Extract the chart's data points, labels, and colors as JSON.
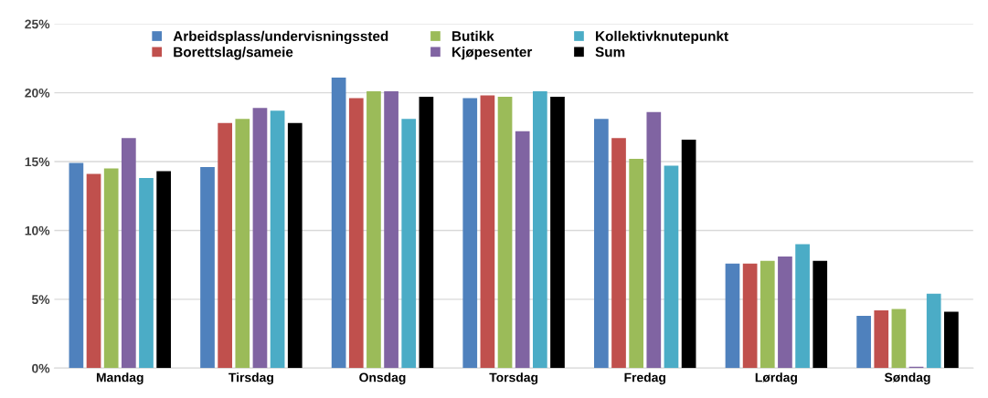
{
  "chart_data": {
    "type": "bar",
    "categories": [
      "Mandag",
      "Tirsdag",
      "Onsdag",
      "Torsdag",
      "Fredag",
      "Lørdag",
      "Søndag"
    ],
    "series": [
      {
        "name": "Arbeidsplass/undervisningssted",
        "color": "#4f81bd",
        "values": [
          14.9,
          14.6,
          21.1,
          19.6,
          18.1,
          7.6,
          3.8
        ]
      },
      {
        "name": "Borettslag/sameie",
        "color": "#c0504d",
        "values": [
          14.1,
          17.8,
          19.6,
          19.8,
          16.7,
          7.6,
          4.2
        ]
      },
      {
        "name": "Butikk",
        "color": "#9bbb59",
        "values": [
          14.5,
          18.1,
          20.1,
          19.7,
          15.2,
          7.8,
          4.3
        ]
      },
      {
        "name": "Kjøpesenter",
        "color": "#8064a2",
        "values": [
          16.7,
          18.9,
          20.1,
          17.2,
          18.6,
          8.1,
          0.1
        ]
      },
      {
        "name": "Kollektivknutepunkt",
        "color": "#4bacc6",
        "values": [
          13.8,
          18.7,
          18.1,
          20.1,
          14.7,
          9.0,
          5.4
        ]
      },
      {
        "name": "Sum",
        "color": "#000000",
        "values": [
          14.3,
          17.8,
          19.7,
          19.7,
          16.6,
          7.8,
          4.1
        ]
      }
    ],
    "ylim": [
      0,
      25
    ],
    "yticks": [
      {
        "value": 0,
        "label": "0%"
      },
      {
        "value": 5,
        "label": "5%"
      },
      {
        "value": 10,
        "label": "10%"
      },
      {
        "value": 15,
        "label": "15%"
      },
      {
        "value": 20,
        "label": "20%"
      },
      {
        "value": 25,
        "label": "25%"
      }
    ],
    "grid": "y",
    "legend": "top"
  }
}
